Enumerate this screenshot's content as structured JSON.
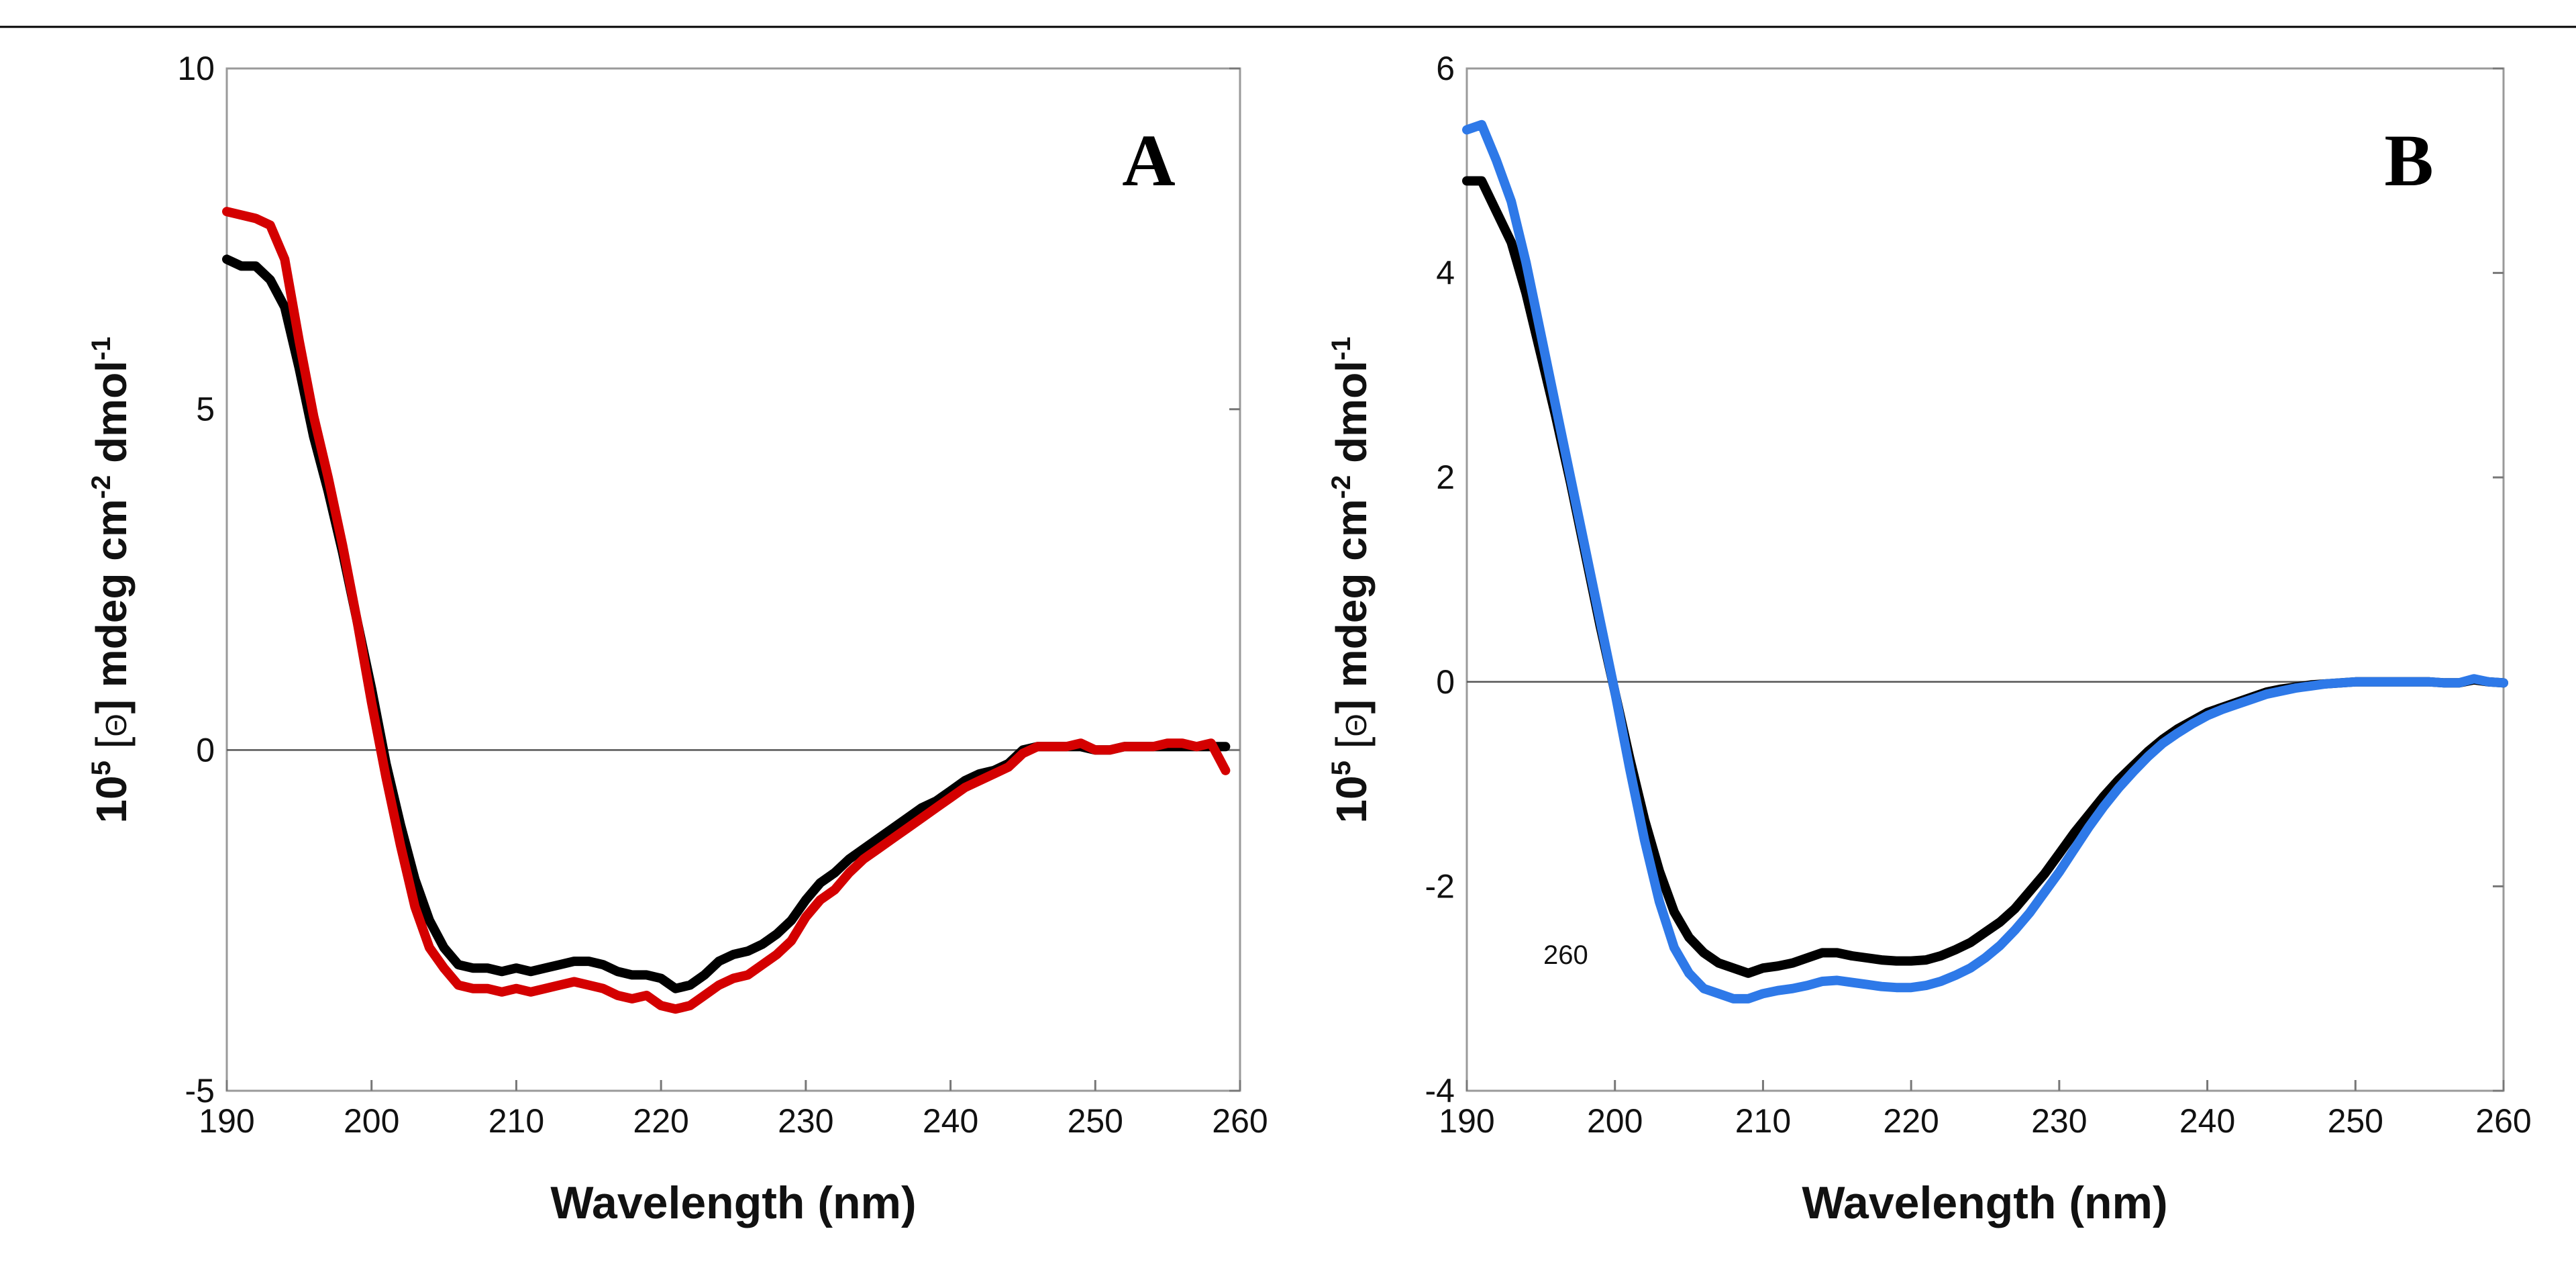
{
  "chart_data": [
    {
      "type": "line",
      "panel_label": "A",
      "xlabel": "Wavelength (nm)",
      "ylabel_parts": [
        "10",
        "5",
        " [",
        "Θ",
        "] mdeg cm",
        "-2",
        " dmol",
        "-1"
      ],
      "xlim": [
        190,
        260
      ],
      "ylim": [
        -5,
        10
      ],
      "x_ticks": [
        190,
        200,
        210,
        220,
        230,
        240,
        250,
        260
      ],
      "y_ticks": [
        -5,
        0,
        5,
        10
      ],
      "grid": false,
      "series": [
        {
          "name": "black",
          "color": "#000000",
          "x": [
            190,
            191,
            192,
            193,
            194,
            195,
            196,
            197,
            198,
            199,
            200,
            201,
            202,
            203,
            204,
            205,
            206,
            207,
            208,
            209,
            210,
            211,
            212,
            213,
            214,
            215,
            216,
            217,
            218,
            219,
            220,
            221,
            222,
            223,
            224,
            225,
            226,
            227,
            228,
            229,
            230,
            231,
            232,
            233,
            234,
            235,
            236,
            237,
            238,
            239,
            240,
            241,
            242,
            243,
            244,
            245,
            246,
            247,
            248,
            249,
            250,
            251,
            252,
            253,
            254,
            255,
            256,
            257,
            258,
            259
          ],
          "y": [
            7.2,
            7.1,
            7.1,
            6.9,
            6.5,
            5.6,
            4.6,
            3.8,
            2.9,
            1.9,
            0.9,
            -0.2,
            -1.1,
            -1.9,
            -2.5,
            -2.9,
            -3.15,
            -3.2,
            -3.2,
            -3.25,
            -3.2,
            -3.25,
            -3.2,
            -3.15,
            -3.1,
            -3.1,
            -3.15,
            -3.25,
            -3.3,
            -3.3,
            -3.35,
            -3.5,
            -3.45,
            -3.3,
            -3.1,
            -3.0,
            -2.95,
            -2.85,
            -2.7,
            -2.5,
            -2.2,
            -1.95,
            -1.8,
            -1.6,
            -1.45,
            -1.3,
            -1.15,
            -1.0,
            -0.85,
            -0.75,
            -0.6,
            -0.45,
            -0.35,
            -0.3,
            -0.2,
            0.0,
            0.05,
            0.05,
            0.05,
            0.05,
            0.0,
            0.0,
            0.05,
            0.05,
            0.05,
            0.05,
            0.05,
            0.05,
            0.05,
            0.05
          ]
        },
        {
          "name": "red",
          "color": "#d40000",
          "x": [
            190,
            191,
            192,
            193,
            194,
            195,
            196,
            197,
            198,
            199,
            200,
            201,
            202,
            203,
            204,
            205,
            206,
            207,
            208,
            209,
            210,
            211,
            212,
            213,
            214,
            215,
            216,
            217,
            218,
            219,
            220,
            221,
            222,
            223,
            224,
            225,
            226,
            227,
            228,
            229,
            230,
            231,
            232,
            233,
            234,
            235,
            236,
            237,
            238,
            239,
            240,
            241,
            242,
            243,
            244,
            245,
            246,
            247,
            248,
            249,
            250,
            251,
            252,
            253,
            254,
            255,
            256,
            257,
            258,
            259
          ],
          "y": [
            7.9,
            7.85,
            7.8,
            7.7,
            7.2,
            6.0,
            4.9,
            4.0,
            3.0,
            1.9,
            0.7,
            -0.4,
            -1.4,
            -2.3,
            -2.9,
            -3.2,
            -3.45,
            -3.5,
            -3.5,
            -3.55,
            -3.5,
            -3.55,
            -3.5,
            -3.45,
            -3.4,
            -3.45,
            -3.5,
            -3.6,
            -3.65,
            -3.6,
            -3.75,
            -3.8,
            -3.75,
            -3.6,
            -3.45,
            -3.35,
            -3.3,
            -3.15,
            -3.0,
            -2.8,
            -2.45,
            -2.2,
            -2.05,
            -1.8,
            -1.6,
            -1.45,
            -1.3,
            -1.15,
            -1.0,
            -0.85,
            -0.7,
            -0.55,
            -0.45,
            -0.35,
            -0.25,
            -0.05,
            0.05,
            0.05,
            0.05,
            0.1,
            0.0,
            0.0,
            0.05,
            0.05,
            0.05,
            0.1,
            0.1,
            0.05,
            0.1,
            -0.3
          ]
        }
      ]
    },
    {
      "type": "line",
      "panel_label": "B",
      "xlabel": "Wavelength (nm)",
      "ylabel_parts": [
        "10",
        "5",
        " [",
        "Θ",
        "] mdeg cm",
        "-2",
        " dmol",
        "-1"
      ],
      "xlim": [
        190,
        260
      ],
      "ylim": [
        -4,
        6
      ],
      "x_ticks": [
        190,
        200,
        210,
        220,
        230,
        240,
        250,
        260
      ],
      "y_ticks": [
        -4,
        -2,
        0,
        2,
        4,
        6
      ],
      "grid": false,
      "annotation": "260",
      "series": [
        {
          "name": "black",
          "color": "#000000",
          "x": [
            190,
            191,
            192,
            193,
            194,
            195,
            196,
            197,
            198,
            199,
            200,
            201,
            202,
            203,
            204,
            205,
            206,
            207,
            208,
            209,
            210,
            211,
            212,
            213,
            214,
            215,
            216,
            217,
            218,
            219,
            220,
            221,
            222,
            223,
            224,
            225,
            226,
            227,
            228,
            229,
            230,
            231,
            232,
            233,
            234,
            235,
            236,
            237,
            238,
            239,
            240,
            241,
            242,
            243,
            244,
            245,
            246,
            247,
            248,
            249,
            250,
            251,
            252,
            253,
            254,
            255,
            256,
            257,
            258,
            259,
            260
          ],
          "y": [
            4.9,
            4.9,
            4.6,
            4.3,
            3.8,
            3.2,
            2.6,
            1.95,
            1.25,
            0.55,
            -0.1,
            -0.75,
            -1.35,
            -1.85,
            -2.25,
            -2.5,
            -2.65,
            -2.75,
            -2.8,
            -2.85,
            -2.8,
            -2.78,
            -2.75,
            -2.7,
            -2.65,
            -2.65,
            -2.68,
            -2.7,
            -2.72,
            -2.73,
            -2.73,
            -2.72,
            -2.68,
            -2.62,
            -2.55,
            -2.45,
            -2.35,
            -2.22,
            -2.05,
            -1.88,
            -1.68,
            -1.48,
            -1.3,
            -1.12,
            -0.96,
            -0.82,
            -0.68,
            -0.56,
            -0.46,
            -0.38,
            -0.3,
            -0.25,
            -0.2,
            -0.15,
            -0.1,
            -0.07,
            -0.05,
            -0.03,
            -0.02,
            -0.01,
            0.0,
            0.0,
            0.0,
            0.0,
            0.0,
            0.0,
            -0.01,
            -0.01,
            0.02,
            0.0,
            -0.01
          ]
        },
        {
          "name": "blue",
          "color": "#2e79e8",
          "x": [
            190,
            191,
            192,
            193,
            194,
            195,
            196,
            197,
            198,
            199,
            200,
            201,
            202,
            203,
            204,
            205,
            206,
            207,
            208,
            209,
            210,
            211,
            212,
            213,
            214,
            215,
            216,
            217,
            218,
            219,
            220,
            221,
            222,
            223,
            224,
            225,
            226,
            227,
            228,
            229,
            230,
            231,
            232,
            233,
            234,
            235,
            236,
            237,
            238,
            239,
            240,
            241,
            242,
            243,
            244,
            245,
            246,
            247,
            248,
            249,
            250,
            251,
            252,
            253,
            254,
            255,
            256,
            257,
            258,
            259,
            260
          ],
          "y": [
            5.4,
            5.45,
            5.1,
            4.7,
            4.1,
            3.4,
            2.7,
            2.0,
            1.3,
            0.6,
            -0.1,
            -0.85,
            -1.55,
            -2.15,
            -2.6,
            -2.85,
            -3.0,
            -3.05,
            -3.1,
            -3.1,
            -3.05,
            -3.02,
            -3.0,
            -2.97,
            -2.93,
            -2.92,
            -2.94,
            -2.96,
            -2.98,
            -2.99,
            -2.99,
            -2.97,
            -2.93,
            -2.87,
            -2.8,
            -2.7,
            -2.58,
            -2.43,
            -2.26,
            -2.06,
            -1.86,
            -1.64,
            -1.42,
            -1.22,
            -1.04,
            -0.88,
            -0.73,
            -0.6,
            -0.5,
            -0.41,
            -0.33,
            -0.27,
            -0.22,
            -0.17,
            -0.12,
            -0.09,
            -0.06,
            -0.04,
            -0.02,
            -0.01,
            0.0,
            0.0,
            0.0,
            0.0,
            0.0,
            0.0,
            -0.01,
            -0.01,
            0.03,
            0.0,
            -0.01
          ]
        }
      ]
    }
  ]
}
